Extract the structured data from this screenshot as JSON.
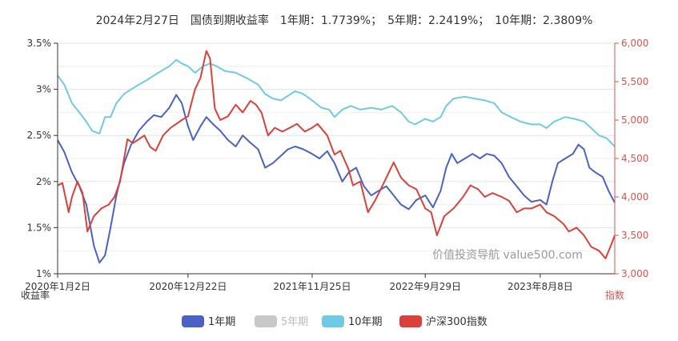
{
  "chart_data": {
    "type": "line",
    "title": "2024年2月27日　国债到期收益率　1年期：1.7739%；　5年期：2.2419%；　10年期：2.3809%",
    "x_ticks": [
      "2020年1月2日",
      "2020年12月22日",
      "2021年11月25日",
      "2022年9月29日",
      "2023年8月8日"
    ],
    "x_range": [
      "2020-01-02",
      "2024-02-27"
    ],
    "y_left": {
      "name": "收益率",
      "ticks": [
        "1%",
        "1.5%",
        "2%",
        "2.5%",
        "3%",
        "3.5%"
      ],
      "range": [
        1,
        3.5
      ]
    },
    "y_right": {
      "name": "指数",
      "ticks": [
        "3,000",
        "3,500",
        "4,000",
        "4,500",
        "5,000",
        "5,500",
        "6,000"
      ],
      "range": [
        3000,
        6000
      ]
    },
    "grid": true,
    "legend_position": "bottom",
    "watermark": "价值投资导航 value500.com",
    "series": [
      {
        "name": "1年期",
        "axis": "left",
        "color": "#4a62c4",
        "visible": true,
        "points": [
          [
            "2020-01-02",
            2.45
          ],
          [
            "2020-01-20",
            2.32
          ],
          [
            "2020-02-10",
            2.1
          ],
          [
            "2020-03-01",
            1.95
          ],
          [
            "2020-03-20",
            1.75
          ],
          [
            "2020-04-10",
            1.3
          ],
          [
            "2020-04-25",
            1.12
          ],
          [
            "2020-05-10",
            1.2
          ],
          [
            "2020-05-25",
            1.5
          ],
          [
            "2020-06-10",
            1.85
          ],
          [
            "2020-07-01",
            2.2
          ],
          [
            "2020-07-20",
            2.4
          ],
          [
            "2020-08-10",
            2.55
          ],
          [
            "2020-09-01",
            2.65
          ],
          [
            "2020-09-20",
            2.72
          ],
          [
            "2020-10-10",
            2.7
          ],
          [
            "2020-11-01",
            2.8
          ],
          [
            "2020-11-20",
            2.94
          ],
          [
            "2020-12-05",
            2.85
          ],
          [
            "2020-12-22",
            2.6
          ],
          [
            "2021-01-05",
            2.45
          ],
          [
            "2021-01-25",
            2.6
          ],
          [
            "2021-02-10",
            2.7
          ],
          [
            "2021-03-01",
            2.62
          ],
          [
            "2021-03-20",
            2.55
          ],
          [
            "2021-04-10",
            2.45
          ],
          [
            "2021-05-01",
            2.38
          ],
          [
            "2021-05-20",
            2.5
          ],
          [
            "2021-06-10",
            2.42
          ],
          [
            "2021-07-01",
            2.35
          ],
          [
            "2021-07-20",
            2.15
          ],
          [
            "2021-08-10",
            2.2
          ],
          [
            "2021-09-01",
            2.28
          ],
          [
            "2021-09-20",
            2.35
          ],
          [
            "2021-10-10",
            2.38
          ],
          [
            "2021-11-01",
            2.35
          ],
          [
            "2021-11-25",
            2.3
          ],
          [
            "2021-12-15",
            2.25
          ],
          [
            "2022-01-05",
            2.33
          ],
          [
            "2022-01-25",
            2.2
          ],
          [
            "2022-02-15",
            2.0
          ],
          [
            "2022-03-05",
            2.1
          ],
          [
            "2022-03-25",
            2.15
          ],
          [
            "2022-04-15",
            1.95
          ],
          [
            "2022-05-05",
            1.85
          ],
          [
            "2022-05-25",
            1.9
          ],
          [
            "2022-06-15",
            1.95
          ],
          [
            "2022-07-05",
            1.85
          ],
          [
            "2022-07-25",
            1.75
          ],
          [
            "2022-08-15",
            1.7
          ],
          [
            "2022-09-05",
            1.8
          ],
          [
            "2022-09-29",
            1.85
          ],
          [
            "2022-10-20",
            1.72
          ],
          [
            "2022-11-10",
            1.9
          ],
          [
            "2022-11-25",
            2.15
          ],
          [
            "2022-12-10",
            2.3
          ],
          [
            "2022-12-25",
            2.2
          ],
          [
            "2023-01-15",
            2.25
          ],
          [
            "2023-02-05",
            2.3
          ],
          [
            "2023-02-25",
            2.25
          ],
          [
            "2023-03-15",
            2.3
          ],
          [
            "2023-04-05",
            2.28
          ],
          [
            "2023-04-25",
            2.2
          ],
          [
            "2023-05-15",
            2.05
          ],
          [
            "2023-06-05",
            1.95
          ],
          [
            "2023-06-25",
            1.85
          ],
          [
            "2023-07-15",
            1.78
          ],
          [
            "2023-08-08",
            1.8
          ],
          [
            "2023-08-25",
            1.75
          ],
          [
            "2023-09-10",
            2.0
          ],
          [
            "2023-09-25",
            2.2
          ],
          [
            "2023-10-15",
            2.25
          ],
          [
            "2023-11-05",
            2.3
          ],
          [
            "2023-11-20",
            2.4
          ],
          [
            "2023-12-05",
            2.35
          ],
          [
            "2023-12-20",
            2.15
          ],
          [
            "2024-01-05",
            2.1
          ],
          [
            "2024-01-25",
            2.05
          ],
          [
            "2024-02-10",
            1.9
          ],
          [
            "2024-02-27",
            1.77
          ]
        ]
      },
      {
        "name": "5年期",
        "axis": "left",
        "color": "#c8c8c8",
        "visible": false,
        "points": []
      },
      {
        "name": "10年期",
        "axis": "left",
        "color": "#6fcbe4",
        "visible": true,
        "points": [
          [
            "2020-01-02",
            3.15
          ],
          [
            "2020-01-20",
            3.05
          ],
          [
            "2020-02-10",
            2.85
          ],
          [
            "2020-03-01",
            2.75
          ],
          [
            "2020-03-20",
            2.65
          ],
          [
            "2020-04-05",
            2.55
          ],
          [
            "2020-04-25",
            2.52
          ],
          [
            "2020-05-10",
            2.7
          ],
          [
            "2020-05-25",
            2.7
          ],
          [
            "2020-06-10",
            2.85
          ],
          [
            "2020-07-01",
            2.95
          ],
          [
            "2020-07-20",
            3.0
          ],
          [
            "2020-08-10",
            3.05
          ],
          [
            "2020-09-01",
            3.1
          ],
          [
            "2020-09-20",
            3.15
          ],
          [
            "2020-10-10",
            3.2
          ],
          [
            "2020-11-01",
            3.25
          ],
          [
            "2020-11-20",
            3.32
          ],
          [
            "2020-12-05",
            3.28
          ],
          [
            "2020-12-22",
            3.25
          ],
          [
            "2021-01-10",
            3.18
          ],
          [
            "2021-02-01",
            3.25
          ],
          [
            "2021-02-20",
            3.28
          ],
          [
            "2021-03-10",
            3.25
          ],
          [
            "2021-04-01",
            3.2
          ],
          [
            "2021-05-01",
            3.18
          ],
          [
            "2021-06-01",
            3.12
          ],
          [
            "2021-07-01",
            3.05
          ],
          [
            "2021-07-20",
            2.95
          ],
          [
            "2021-08-10",
            2.9
          ],
          [
            "2021-09-01",
            2.88
          ],
          [
            "2021-10-10",
            2.98
          ],
          [
            "2021-11-01",
            2.95
          ],
          [
            "2021-11-25",
            2.88
          ],
          [
            "2021-12-20",
            2.8
          ],
          [
            "2022-01-10",
            2.78
          ],
          [
            "2022-01-25",
            2.7
          ],
          [
            "2022-02-15",
            2.78
          ],
          [
            "2022-03-10",
            2.82
          ],
          [
            "2022-04-05",
            2.78
          ],
          [
            "2022-05-05",
            2.8
          ],
          [
            "2022-06-01",
            2.78
          ],
          [
            "2022-07-01",
            2.82
          ],
          [
            "2022-07-25",
            2.75
          ],
          [
            "2022-08-15",
            2.65
          ],
          [
            "2022-09-01",
            2.62
          ],
          [
            "2022-09-29",
            2.68
          ],
          [
            "2022-10-20",
            2.65
          ],
          [
            "2022-11-10",
            2.7
          ],
          [
            "2022-11-25",
            2.82
          ],
          [
            "2022-12-15",
            2.9
          ],
          [
            "2023-01-15",
            2.92
          ],
          [
            "2023-02-10",
            2.9
          ],
          [
            "2023-03-10",
            2.88
          ],
          [
            "2023-04-05",
            2.85
          ],
          [
            "2023-04-25",
            2.75
          ],
          [
            "2023-05-20",
            2.7
          ],
          [
            "2023-06-15",
            2.65
          ],
          [
            "2023-07-15",
            2.62
          ],
          [
            "2023-08-08",
            2.62
          ],
          [
            "2023-08-25",
            2.58
          ],
          [
            "2023-09-15",
            2.65
          ],
          [
            "2023-10-15",
            2.7
          ],
          [
            "2023-11-10",
            2.68
          ],
          [
            "2023-12-05",
            2.65
          ],
          [
            "2023-12-25",
            2.58
          ],
          [
            "2024-01-15",
            2.5
          ],
          [
            "2024-02-05",
            2.47
          ],
          [
            "2024-02-27",
            2.38
          ]
        ]
      },
      {
        "name": "沪深300指数",
        "axis": "right",
        "color": "#d9413a",
        "visible": true,
        "points": [
          [
            "2020-01-02",
            4150
          ],
          [
            "2020-01-15",
            4180
          ],
          [
            "2020-02-01",
            3800
          ],
          [
            "2020-02-10",
            4000
          ],
          [
            "2020-02-25",
            4200
          ],
          [
            "2020-03-10",
            4050
          ],
          [
            "2020-03-23",
            3550
          ],
          [
            "2020-04-10",
            3750
          ],
          [
            "2020-04-30",
            3850
          ],
          [
            "2020-05-20",
            3900
          ],
          [
            "2020-06-05",
            4000
          ],
          [
            "2020-06-20",
            4200
          ],
          [
            "2020-07-10",
            4750
          ],
          [
            "2020-07-25",
            4700
          ],
          [
            "2020-08-10",
            4750
          ],
          [
            "2020-08-25",
            4800
          ],
          [
            "2020-09-10",
            4650
          ],
          [
            "2020-09-25",
            4600
          ],
          [
            "2020-10-15",
            4800
          ],
          [
            "2020-11-05",
            4900
          ],
          [
            "2020-11-20",
            4950
          ],
          [
            "2020-12-05",
            5000
          ],
          [
            "2020-12-22",
            5050
          ],
          [
            "2021-01-10",
            5400
          ],
          [
            "2021-01-25",
            5550
          ],
          [
            "2021-02-10",
            5900
          ],
          [
            "2021-02-20",
            5800
          ],
          [
            "2021-03-05",
            5150
          ],
          [
            "2021-03-20",
            5000
          ],
          [
            "2021-04-10",
            5050
          ],
          [
            "2021-05-01",
            5200
          ],
          [
            "2021-05-20",
            5100
          ],
          [
            "2021-06-10",
            5250
          ],
          [
            "2021-06-25",
            5200
          ],
          [
            "2021-07-10",
            5100
          ],
          [
            "2021-07-28",
            4800
          ],
          [
            "2021-08-15",
            4900
          ],
          [
            "2021-09-05",
            4850
          ],
          [
            "2021-09-25",
            4900
          ],
          [
            "2021-10-15",
            4950
          ],
          [
            "2021-11-05",
            4850
          ],
          [
            "2021-11-25",
            4900
          ],
          [
            "2021-12-10",
            4950
          ],
          [
            "2022-01-05",
            4800
          ],
          [
            "2022-01-25",
            4550
          ],
          [
            "2022-02-10",
            4600
          ],
          [
            "2022-03-05",
            4350
          ],
          [
            "2022-03-16",
            4150
          ],
          [
            "2022-04-05",
            4200
          ],
          [
            "2022-04-26",
            3800
          ],
          [
            "2022-05-15",
            3950
          ],
          [
            "2022-06-05",
            4150
          ],
          [
            "2022-06-25",
            4350
          ],
          [
            "2022-07-05",
            4450
          ],
          [
            "2022-07-25",
            4250
          ],
          [
            "2022-08-15",
            4150
          ],
          [
            "2022-09-05",
            4100
          ],
          [
            "2022-09-29",
            3850
          ],
          [
            "2022-10-15",
            3800
          ],
          [
            "2022-10-31",
            3500
          ],
          [
            "2022-11-20",
            3750
          ],
          [
            "2022-12-15",
            3850
          ],
          [
            "2023-01-10",
            4000
          ],
          [
            "2023-01-30",
            4150
          ],
          [
            "2023-02-20",
            4100
          ],
          [
            "2023-03-10",
            4000
          ],
          [
            "2023-03-31",
            4050
          ],
          [
            "2023-04-25",
            4000
          ],
          [
            "2023-05-15",
            3950
          ],
          [
            "2023-06-05",
            3800
          ],
          [
            "2023-06-25",
            3850
          ],
          [
            "2023-07-15",
            3850
          ],
          [
            "2023-08-08",
            3900
          ],
          [
            "2023-08-25",
            3800
          ],
          [
            "2023-09-15",
            3750
          ],
          [
            "2023-10-10",
            3650
          ],
          [
            "2023-10-25",
            3550
          ],
          [
            "2023-11-15",
            3600
          ],
          [
            "2023-12-05",
            3500
          ],
          [
            "2023-12-25",
            3350
          ],
          [
            "2024-01-15",
            3300
          ],
          [
            "2024-02-02",
            3200
          ],
          [
            "2024-02-15",
            3350
          ],
          [
            "2024-02-27",
            3500
          ]
        ]
      }
    ]
  }
}
